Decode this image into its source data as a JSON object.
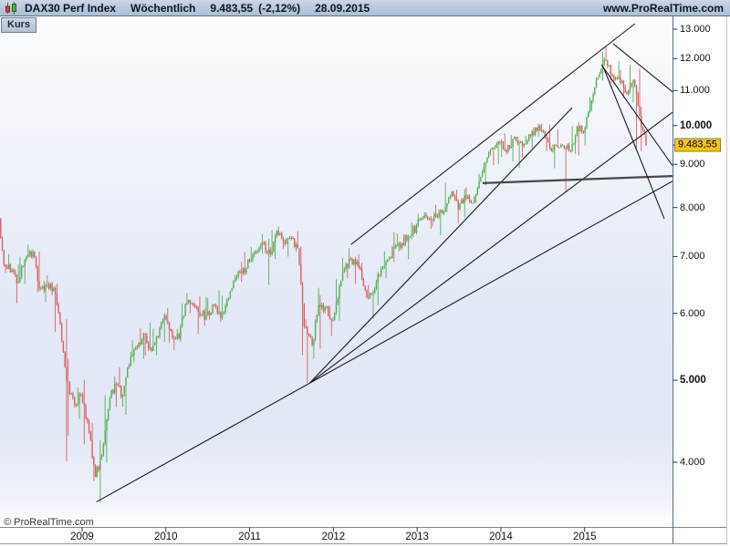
{
  "header": {
    "title": "DAX30 Perf Index",
    "timeframe": "Wöchentlich",
    "price": "9.483,55",
    "change": "(-2,12%)",
    "date": "28.09.2015",
    "website": "www.ProRealTime.com"
  },
  "tab": {
    "label": "Kurs"
  },
  "footer": {
    "watermark": "© ProRealTime.com"
  },
  "colors": {
    "candle_up": "#54ae53",
    "candle_down": "#d95f5f",
    "trendline": "#1b1b1b",
    "last_price_bg": "#f3c51a",
    "axis_line": "#5c6c84",
    "plot_top": "#fbfcfe",
    "plot_mid": "#e3e9f6"
  },
  "axes": {
    "y_ticks": [
      {
        "label": "13.000",
        "value": 13000,
        "bold": false
      },
      {
        "label": "12.000",
        "value": 12000,
        "bold": false
      },
      {
        "label": "11.000",
        "value": 11000,
        "bold": false
      },
      {
        "label": "10.000",
        "value": 10000,
        "bold": true
      },
      {
        "label": "9.000",
        "value": 9000,
        "bold": false
      },
      {
        "label": "8.000",
        "value": 8000,
        "bold": false
      },
      {
        "label": "7.000",
        "value": 7000,
        "bold": false
      },
      {
        "label": "6.000",
        "value": 6000,
        "bold": false
      },
      {
        "label": "5.000",
        "value": 5000,
        "bold": true
      },
      {
        "label": "4.000",
        "value": 4000,
        "bold": false
      }
    ],
    "x_ticks": [
      {
        "label": "2009",
        "year": 2009
      },
      {
        "label": "2010",
        "year": 2010
      },
      {
        "label": "2011",
        "year": 2011
      },
      {
        "label": "2012",
        "year": 2012
      },
      {
        "label": "2013",
        "year": 2013
      },
      {
        "label": "2014",
        "year": 2014
      },
      {
        "label": "2015",
        "year": 2015
      }
    ],
    "last_price": {
      "label": "9.483,55",
      "value": 9483.55
    }
  },
  "chart_data": {
    "type": "candlestick",
    "instrument": "DAX30 Perf Index",
    "timeframe": "weekly",
    "scale": "logarithmic",
    "title": "DAX30 Perf Index Wöchentlich",
    "x_range_years": [
      2008.02,
      2016.05
    ],
    "y_range": [
      3589,
      13000
    ],
    "grid": false,
    "last": {
      "date": "28.09.2015",
      "close": 9483.55,
      "change_pct": -2.12
    },
    "first_open": 7949,
    "monthly_hlc": [
      [
        "2008-01",
        8080,
        6520,
        6850
      ],
      [
        "2008-02",
        7050,
        6700,
        6748
      ],
      [
        "2008-03",
        6850,
        6167,
        6535
      ],
      [
        "2008-04",
        7000,
        6500,
        6948
      ],
      [
        "2008-05",
        7231,
        6900,
        7097
      ],
      [
        "2008-06",
        7100,
        6350,
        6418
      ],
      [
        "2008-07",
        6550,
        6190,
        6480
      ],
      [
        "2008-08",
        6650,
        6300,
        6422
      ],
      [
        "2008-09",
        6500,
        5700,
        5831
      ],
      [
        "2008-10",
        5900,
        4014,
        4987
      ],
      [
        "2008-11",
        5300,
        4300,
        4669
      ],
      [
        "2008-12",
        4900,
        4500,
        4810
      ],
      [
        "2009-01",
        5000,
        4200,
        4338
      ],
      [
        "2009-02",
        4450,
        3800,
        3843
      ],
      [
        "2009-03",
        4250,
        3589,
        4085
      ],
      [
        "2009-04",
        4800,
        4000,
        4769
      ],
      [
        "2009-05",
        5050,
        4650,
        4940
      ],
      [
        "2009-06",
        5180,
        4650,
        4809
      ],
      [
        "2009-07",
        5400,
        4550,
        5332
      ],
      [
        "2009-08",
        5575,
        5250,
        5464
      ],
      [
        "2009-09",
        5760,
        5300,
        5675
      ],
      [
        "2009-10",
        5850,
        5350,
        5415
      ],
      [
        "2009-11",
        5750,
        5350,
        5626
      ],
      [
        "2009-12",
        6000,
        5550,
        5957
      ],
      [
        "2010-01",
        6090,
        5540,
        5609
      ],
      [
        "2010-02",
        5750,
        5430,
        5598
      ],
      [
        "2010-03",
        6160,
        5550,
        6154
      ],
      [
        "2010-04",
        6340,
        6000,
        6136
      ],
      [
        "2010-05",
        6280,
        5670,
        5964
      ],
      [
        "2010-06",
        6270,
        5800,
        5966
      ],
      [
        "2010-07",
        6250,
        5900,
        6148
      ],
      [
        "2010-08",
        6390,
        5860,
        5925
      ],
      [
        "2010-09",
        6300,
        5890,
        6229
      ],
      [
        "2010-10",
        6660,
        6200,
        6601
      ],
      [
        "2010-11",
        6900,
        6530,
        6688
      ],
      [
        "2010-12",
        7090,
        6650,
        6914
      ],
      [
        "2011-01",
        7190,
        6890,
        7077
      ],
      [
        "2011-02",
        7440,
        7050,
        7272
      ],
      [
        "2011-03",
        7350,
        6483,
        7041
      ],
      [
        "2011-04",
        7520,
        6950,
        7514
      ],
      [
        "2011-05",
        7600,
        7150,
        7293
      ],
      [
        "2011-06",
        7400,
        7000,
        7376
      ],
      [
        "2011-07",
        7500,
        7090,
        7159
      ],
      [
        "2011-08",
        7200,
        5350,
        5785
      ],
      [
        "2011-09",
        5900,
        4966,
        5502
      ],
      [
        "2011-10",
        6430,
        5300,
        6141
      ],
      [
        "2011-11",
        6300,
        5450,
        6088
      ],
      [
        "2011-12",
        6120,
        5640,
        5898
      ],
      [
        "2012-01",
        6580,
        5880,
        6459
      ],
      [
        "2012-02",
        6970,
        6450,
        6856
      ],
      [
        "2012-03",
        7160,
        6600,
        6947
      ],
      [
        "2012-04",
        7050,
        6500,
        6761
      ],
      [
        "2012-05",
        6880,
        6250,
        6264
      ],
      [
        "2012-06",
        6480,
        5914,
        6416
      ],
      [
        "2012-07",
        6820,
        6130,
        6772
      ],
      [
        "2012-08",
        7100,
        6600,
        6971
      ],
      [
        "2012-09",
        7480,
        6900,
        7216
      ],
      [
        "2012-10",
        7450,
        7100,
        7260
      ],
      [
        "2012-11",
        7440,
        6950,
        7406
      ],
      [
        "2012-12",
        7680,
        7340,
        7612
      ],
      [
        "2013-01",
        7870,
        7580,
        7776
      ],
      [
        "2013-02",
        7900,
        7550,
        7742
      ],
      [
        "2013-03",
        8060,
        7600,
        7795
      ],
      [
        "2013-04",
        7960,
        7420,
        7914
      ],
      [
        "2013-05",
        8557,
        7900,
        8349
      ],
      [
        "2013-06",
        8400,
        7655,
        7959
      ],
      [
        "2013-07",
        8410,
        7800,
        8276
      ],
      [
        "2013-08",
        8460,
        8090,
        8103
      ],
      [
        "2013-09",
        8770,
        8100,
        8594
      ],
      [
        "2013-10",
        9050,
        8490,
        9034
      ],
      [
        "2013-11",
        9420,
        8980,
        9405
      ],
      [
        "2013-12",
        9594,
        9000,
        9552
      ],
      [
        "2014-01",
        9794,
        9180,
        9306
      ],
      [
        "2014-02",
        9750,
        9070,
        9692
      ],
      [
        "2014-03",
        9700,
        8913,
        9556
      ],
      [
        "2014-04",
        9730,
        9170,
        9603
      ],
      [
        "2014-05",
        9960,
        9400,
        9943
      ],
      [
        "2014-06",
        10051,
        9700,
        9833
      ],
      [
        "2014-07",
        10030,
        9330,
        9407
      ],
      [
        "2014-08",
        9500,
        8903,
        9470
      ],
      [
        "2014-09",
        9900,
        9420,
        9474
      ],
      [
        "2014-10",
        9550,
        8354,
        9327
      ],
      [
        "2014-11",
        9990,
        9260,
        9981
      ],
      [
        "2014-12",
        10090,
        9219,
        9806
      ],
      [
        "2015-01",
        10810,
        9470,
        10694
      ],
      [
        "2015-02",
        11400,
        10620,
        11402
      ],
      [
        "2015-03",
        12219,
        11310,
        11966
      ],
      [
        "2015-04",
        12390,
        11230,
        11454
      ],
      [
        "2015-05",
        11920,
        11170,
        11414
      ],
      [
        "2015-06",
        11640,
        10780,
        10945
      ],
      [
        "2015-07",
        11800,
        10653,
        11309
      ],
      [
        "2015-08",
        11670,
        9338,
        10259
      ],
      [
        "2015-09",
        10520,
        9325,
        9484
      ]
    ],
    "trendlines": [
      {
        "name": "support-2009-lows",
        "x1": 2009.17,
        "p1": 3590,
        "x2": 2016.08,
        "p2": 8630,
        "thick": false
      },
      {
        "name": "fan-2011-steep",
        "x1": 2011.72,
        "p1": 4965,
        "x2": 2014.85,
        "p2": 10500,
        "thick": false
      },
      {
        "name": "fan-2011-to-edge",
        "x1": 2011.72,
        "p1": 4965,
        "x2": 2016.08,
        "p2": 10425,
        "thick": false
      },
      {
        "name": "resistance-2012-2015",
        "x1": 2012.21,
        "p1": 7235,
        "x2": 2015.6,
        "p2": 13195,
        "thick": false
      },
      {
        "name": "horizontal-support-8600",
        "x1": 2013.78,
        "p1": 8550,
        "x2": 2016.1,
        "p2": 8720,
        "thick": true
      },
      {
        "name": "downtrend-from-peak",
        "x1": 2015.34,
        "p1": 12495,
        "x2": 2016.08,
        "p2": 10900,
        "thick": false
      },
      {
        "name": "crash-line-1",
        "x1": 2015.2,
        "p1": 11800,
        "x2": 2016.05,
        "p2": 8960,
        "thick": false
      },
      {
        "name": "crash-line-2",
        "x1": 2015.22,
        "p1": 11740,
        "x2": 2015.95,
        "p2": 7760,
        "thick": false
      }
    ]
  }
}
